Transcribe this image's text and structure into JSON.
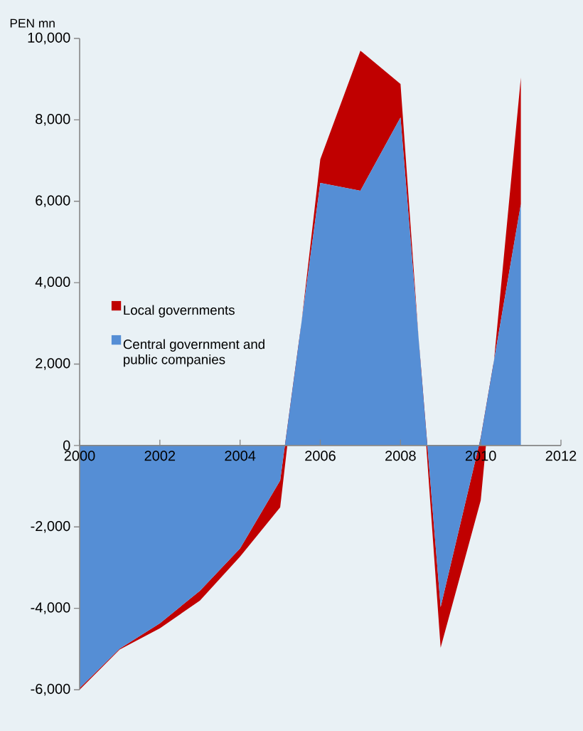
{
  "chart_data": {
    "type": "area",
    "stacked": true,
    "ylabel": "PEN mn",
    "x": [
      2000,
      2001,
      2002,
      2003,
      2004,
      2005,
      2006,
      2007,
      2008,
      2009,
      2010,
      2011
    ],
    "series": [
      {
        "name": "Central government and public companies",
        "color": "#558ed5",
        "values": [
          -5960,
          -4990,
          -4370,
          -3570,
          -2530,
          -860,
          6450,
          6260,
          8060,
          -3970,
          190,
          5930
        ]
      },
      {
        "name": "Local governments",
        "color": "#c00000",
        "values": [
          -40,
          -20,
          -120,
          -240,
          -200,
          -660,
          580,
          3440,
          820,
          -1000,
          -1540,
          3110
        ]
      }
    ],
    "xlim": [
      2000,
      2012
    ],
    "xticks": [
      2000,
      2002,
      2004,
      2006,
      2008,
      2010,
      2012
    ],
    "ylim": [
      -6000,
      10000
    ],
    "yticks": [
      {
        "value": -6000,
        "label": "-6,000"
      },
      {
        "value": -4000,
        "label": "-4,000"
      },
      {
        "value": -2000,
        "label": "-2,000"
      },
      {
        "value": 0,
        "label": "0"
      },
      {
        "value": 2000,
        "label": "2,000"
      },
      {
        "value": 4000,
        "label": "4,000"
      },
      {
        "value": 6000,
        "label": "6,000"
      },
      {
        "value": 8000,
        "label": "8,000"
      },
      {
        "value": 10000,
        "label": "10,000"
      }
    ],
    "legend": "left"
  }
}
